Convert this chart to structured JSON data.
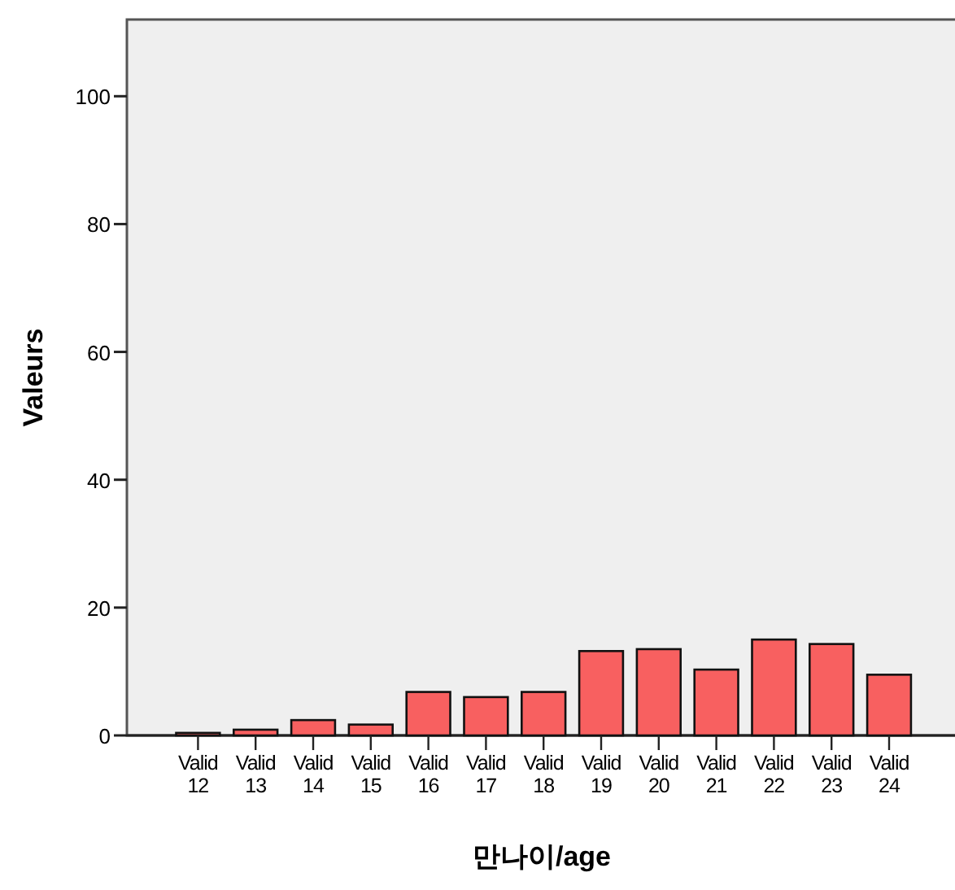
{
  "chart_data": {
    "type": "bar",
    "xlabel": "만나이/age",
    "ylabel": "Valeurs",
    "categories": [
      "Valid 12",
      "Valid 13",
      "Valid 14",
      "Valid 15",
      "Valid 16",
      "Valid 17",
      "Valid 18",
      "Valid 19",
      "Valid 20",
      "Valid 21",
      "Valid 22",
      "Valid 23",
      "Valid 24"
    ],
    "values": [
      0.4,
      0.9,
      2.4,
      1.7,
      6.8,
      6.0,
      6.8,
      13.2,
      13.5,
      10.3,
      15.0,
      14.3,
      9.5
    ],
    "color": "#f86060",
    "ylim": [
      0,
      112
    ],
    "yticks": [
      0,
      20,
      40,
      60,
      80,
      100
    ],
    "grid": false
  }
}
